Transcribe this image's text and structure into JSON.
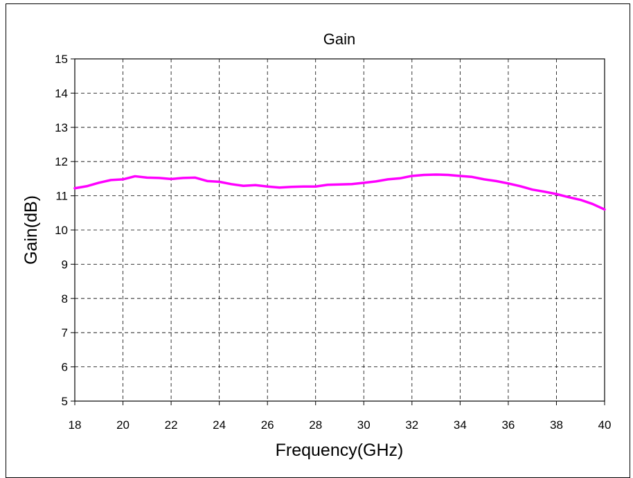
{
  "chart_data": {
    "type": "line",
    "title": "Gain",
    "xlabel": "Frequency(GHz)",
    "ylabel": "Gain(dB)",
    "xlim": [
      18,
      40
    ],
    "ylim": [
      5,
      15
    ],
    "xticks": [
      18,
      20,
      22,
      24,
      26,
      28,
      30,
      32,
      34,
      36,
      38,
      40
    ],
    "yticks": [
      5,
      6,
      7,
      8,
      9,
      10,
      11,
      12,
      13,
      14,
      15
    ],
    "grid": true,
    "grid_style": "dashed",
    "legend": false,
    "series": [
      {
        "color": "#ff00ff",
        "x": [
          18,
          18.5,
          19,
          19.5,
          20,
          20.5,
          21,
          21.5,
          22,
          22.5,
          23,
          23.5,
          24,
          24.5,
          25,
          25.5,
          26,
          26.5,
          27,
          27.5,
          28,
          28.5,
          29,
          29.5,
          30,
          30.5,
          31,
          31.5,
          32,
          32.5,
          33,
          33.5,
          34,
          34.5,
          35,
          35.5,
          36,
          36.5,
          37,
          37.5,
          38,
          38.5,
          39,
          39.5,
          40
        ],
        "y": [
          11.22,
          11.28,
          11.38,
          11.46,
          11.48,
          11.57,
          11.53,
          11.52,
          11.49,
          11.52,
          11.53,
          11.43,
          11.41,
          11.34,
          11.29,
          11.31,
          11.27,
          11.24,
          11.26,
          11.27,
          11.27,
          11.32,
          11.33,
          11.34,
          11.38,
          11.42,
          11.48,
          11.51,
          11.58,
          11.61,
          11.62,
          11.61,
          11.58,
          11.55,
          11.48,
          11.43,
          11.36,
          11.28,
          11.18,
          11.12,
          11.05,
          10.96,
          10.88,
          10.76,
          10.6
        ]
      }
    ]
  }
}
